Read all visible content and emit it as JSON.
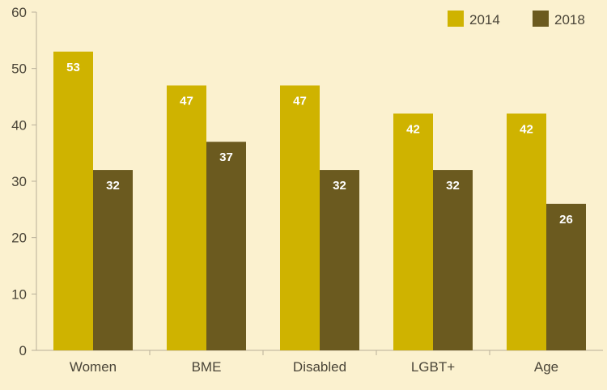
{
  "chart_data": {
    "type": "bar",
    "title": "",
    "xlabel": "",
    "ylabel": "",
    "categories": [
      "Women",
      "BME",
      "Disabled",
      "LGBT+",
      "Age"
    ],
    "series": [
      {
        "name": "2014",
        "color": "#cfb300",
        "values": [
          53,
          47,
          47,
          42,
          42
        ]
      },
      {
        "name": "2018",
        "color": "#6b5a1f",
        "values": [
          32,
          37,
          32,
          32,
          26
        ]
      }
    ],
    "ylim": [
      0,
      60
    ],
    "yticks": [
      0,
      10,
      20,
      30,
      40,
      50,
      60
    ],
    "grid": false,
    "legend": "top-right",
    "data_labels": true
  }
}
